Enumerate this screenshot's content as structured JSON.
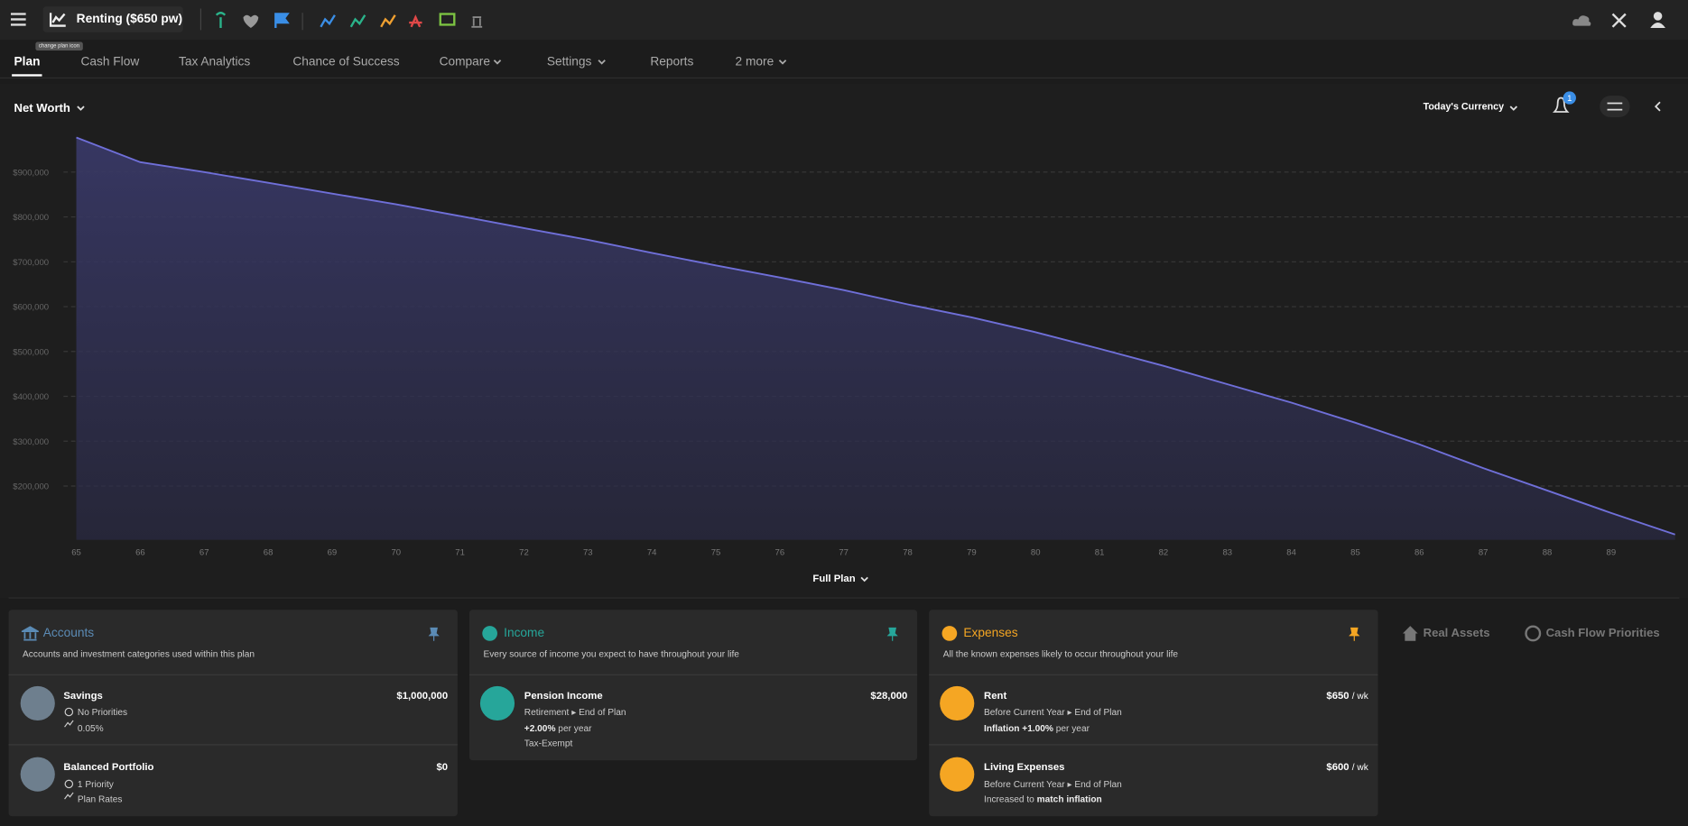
{
  "header": {
    "plan_name": "Renting ($650 pw)",
    "tooltip": "change plan icon"
  },
  "tabs": [
    "Plan",
    "Cash Flow",
    "Tax Analytics",
    "Chance of Success",
    "Compare",
    "Settings",
    "Reports",
    "2 more"
  ],
  "toolbar": {
    "metric": "Net Worth",
    "currency": "Today's Currency",
    "notifications": "1",
    "range": "Full Plan"
  },
  "chart_data": {
    "type": "area",
    "x": [
      65,
      66,
      67,
      68,
      69,
      70,
      71,
      72,
      73,
      74,
      75,
      76,
      77,
      78,
      79,
      80,
      81,
      82,
      83,
      84,
      85,
      86,
      87,
      88,
      89,
      90
    ],
    "values": [
      977000,
      922000,
      900000,
      876000,
      852000,
      828000,
      802000,
      775000,
      749000,
      720000,
      692000,
      665000,
      637000,
      605000,
      576000,
      543000,
      506000,
      468000,
      427000,
      386000,
      341000,
      293000,
      240000,
      190000,
      140000,
      92000
    ],
    "color": "#6f6fd8",
    "xlim": [
      64.8,
      90
    ],
    "xticks": [
      65,
      66,
      67,
      68,
      69,
      70,
      71,
      72,
      73,
      74,
      75,
      76,
      77,
      78,
      79,
      80,
      81,
      82,
      83,
      84,
      85,
      86,
      87,
      88,
      89
    ],
    "ylim": [
      80000,
      1000000
    ],
    "yticks": [
      {
        "value": 200000,
        "label": "$200,000"
      },
      {
        "value": 300000,
        "label": "$300,000"
      },
      {
        "value": 400000,
        "label": "$400,000"
      },
      {
        "value": 500000,
        "label": "$500,000"
      },
      {
        "value": 600000,
        "label": "$600,000"
      },
      {
        "value": 700000,
        "label": "$700,000"
      },
      {
        "value": 800000,
        "label": "$800,000"
      },
      {
        "value": 900000,
        "label": "$900,000"
      }
    ],
    "grid": true
  },
  "cards": [
    {
      "title": "Accounts",
      "description": "Accounts and investment categories used within this plan",
      "items": [
        {
          "name": "Savings",
          "amount": "$1,000,000",
          "lines": [
            "No Priorities",
            "0.05%"
          ]
        },
        {
          "name": "Balanced Portfolio",
          "amount": "$0",
          "lines": [
            "1 Priority",
            "Plan Rates"
          ]
        }
      ]
    },
    {
      "title": "Income",
      "description": "Every source of income you expect to have throughout your life",
      "items": [
        {
          "name": "Pension Income",
          "amount": "$28,000",
          "lines": [
            [
              "Retirement",
              "End of Plan"
            ],
            [
              "+2.00%",
              "per year"
            ],
            [
              "Tax-Exempt"
            ]
          ]
        }
      ]
    },
    {
      "title": "Expenses",
      "description": "All the known expenses likely to occur throughout your life",
      "items": [
        {
          "name": "Rent",
          "amount": "$650",
          "unit": "/ wk",
          "lines": [
            [
              "Before Current Year",
              "End of Plan"
            ],
            [
              "Inflation +1.00%",
              "per year"
            ]
          ]
        },
        {
          "name": "Living Expenses",
          "amount": "$600",
          "unit": "/ wk",
          "lines": [
            [
              "Before Current Year",
              "End of Plan"
            ],
            [
              "Increased to",
              "match inflation"
            ]
          ]
        }
      ]
    }
  ],
  "side_tabs": [
    "Real Assets",
    "Cash Flow Priorities"
  ]
}
